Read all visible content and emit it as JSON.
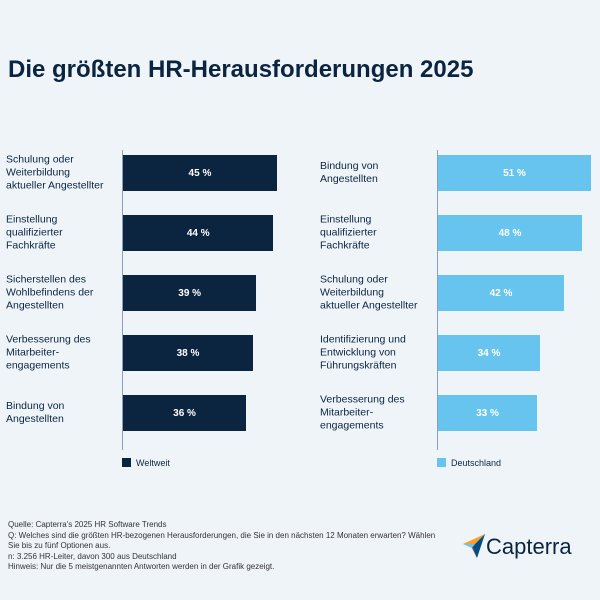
{
  "title": "Die größten HR-Herausforderungen 2025",
  "chart_data": [
    {
      "type": "bar",
      "orientation": "horizontal",
      "categories": [
        "Schulung oder Weiterbildung aktueller Angestellter",
        "Einstellung qualifizierter Fachkräfte",
        "Sicherstellen des Wohlbefindens der Angestellten",
        "Verbesserung des Mitarbeiter-engagements",
        "Bindung von Angestellten"
      ],
      "series": [
        {
          "name": "Weltweit",
          "color": "#0b2540",
          "values": [
            45,
            44,
            39,
            38,
            36
          ],
          "value_labels": [
            "45 %",
            "44 %",
            "39 %",
            "38 %",
            "36 %"
          ]
        }
      ],
      "xlim": [
        0,
        50
      ]
    },
    {
      "type": "bar",
      "orientation": "horizontal",
      "categories": [
        "Bindung von Angestellten",
        "Einstellung qualifizierter Fachkräfte",
        "Schulung oder Weiterbildung aktueller Angestellter",
        "Identifizierung und Entwicklung von Führungskräften",
        "Verbesserung des Mitarbeiter-engagements"
      ],
      "series": [
        {
          "name": "Deutschland",
          "color": "#66c4ee",
          "values": [
            51,
            48,
            42,
            34,
            33
          ],
          "value_labels": [
            "51 %",
            "48 %",
            "42 %",
            "34 %",
            "33 %"
          ]
        }
      ],
      "xlim": [
        0,
        55
      ]
    }
  ],
  "footnotes": [
    "Quelle: Capterra's 2025 HR Software Trends",
    "Q: Welches sind die größten HR-bezogenen Herausforderungen, die Sie in den nächsten 12 Monaten erwarten? Wählen Sie bis zu fünf Optionen aus.",
    "n: 3.256 HR-Leiter, davon 300 aus Deutschland",
    "Hinweis: Nur die 5 meistgenannten Antworten werden in der Grafik gezeigt."
  ],
  "logo": "Capterra"
}
